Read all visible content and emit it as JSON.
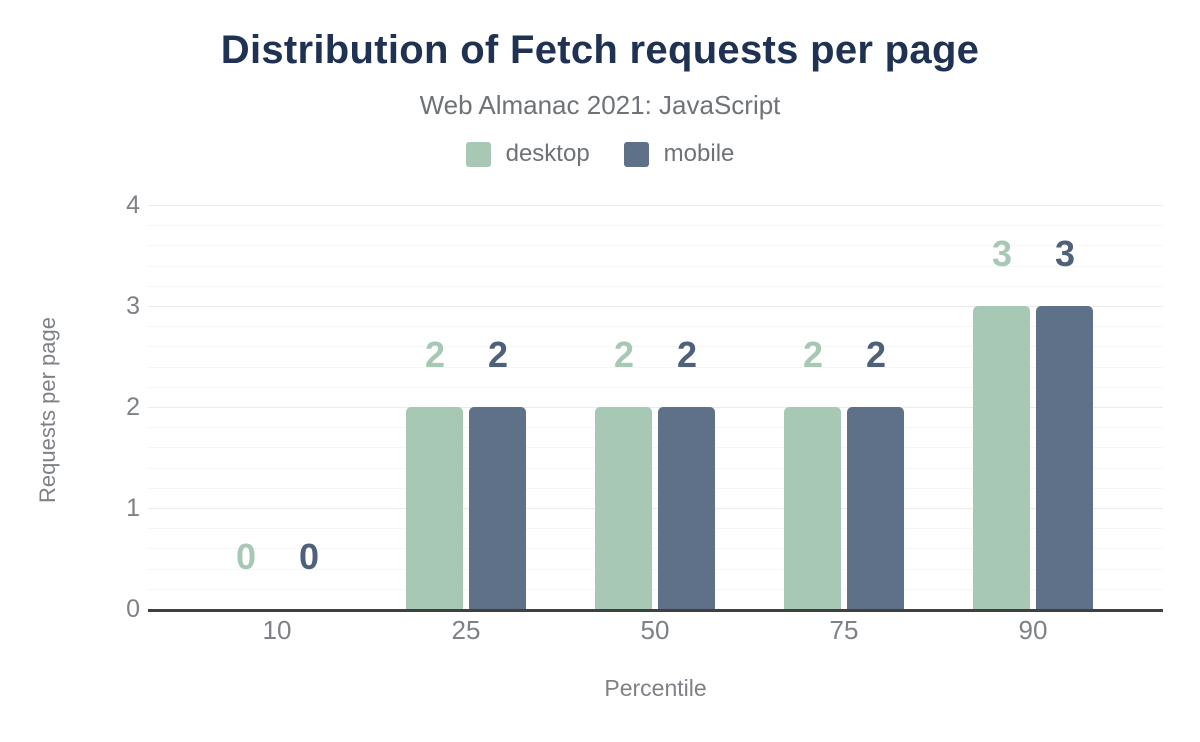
{
  "chart_data": {
    "type": "bar",
    "title": "Distribution of Fetch requests per page",
    "subtitle": "Web Almanac 2021: JavaScript",
    "xlabel": "Percentile",
    "ylabel": "Requests per page",
    "categories": [
      "10",
      "25",
      "50",
      "75",
      "90"
    ],
    "series": [
      {
        "name": "desktop",
        "values": [
          0,
          2,
          2,
          2,
          3
        ],
        "color": "#a6c8b4",
        "label_color": "#a6c8b4"
      },
      {
        "name": "mobile",
        "values": [
          0,
          2,
          2,
          2,
          3
        ],
        "color": "#5f7089",
        "label_color": "#4f607b"
      }
    ],
    "ylim": [
      0,
      4
    ],
    "yticks": [
      "0",
      "1",
      "2",
      "3",
      "4"
    ],
    "minor_grid_step": 0.2,
    "grid": "on",
    "legend_position": "top",
    "colors": {
      "title": "#203253",
      "subtitle": "#6f7377",
      "axis_text": "#7e8286",
      "legend_text": "#6f7377",
      "minor_gridline": "#f6f6f6",
      "major_gridline": "#ebebeb",
      "baseline": "#3f4040",
      "background": "#ffffff"
    }
  }
}
